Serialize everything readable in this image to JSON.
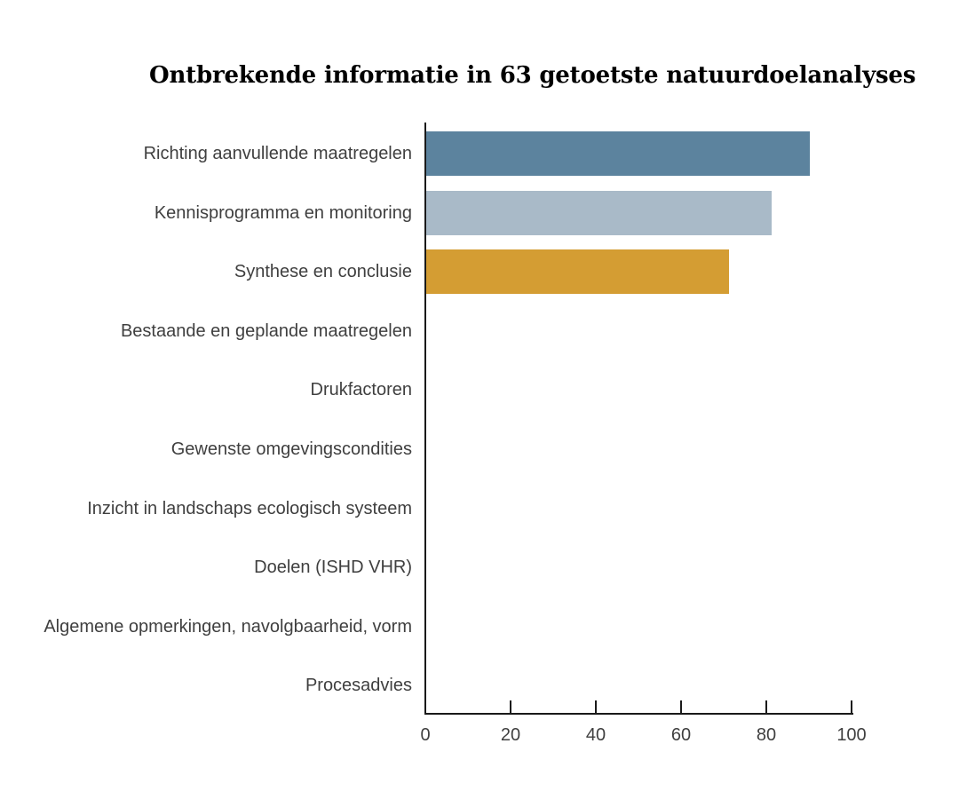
{
  "figure": {
    "background_color": "#ffffff",
    "title_color": "#000000",
    "axis_color": "#1a1a1a",
    "label_color": "#3f3f3f"
  },
  "chart_data": {
    "type": "bar",
    "orientation": "horizontal",
    "title": "Ontbrekende informatie in 63 getoetste natuurdoelanalyses",
    "categories": [
      "Richting aanvullende maatregelen",
      "Kennisprogramma en monitoring",
      "Synthese en conclusie",
      "Bestaande en geplande maatregelen",
      "Drukfactoren",
      "Gewenste omgevingscondities",
      "Inzicht in landschaps ecologisch systeem",
      "Doelen (ISHD VHR)",
      "Algemene opmerkingen, navolgbaarheid, vorm",
      "Procesadvies"
    ],
    "values": [
      90,
      81,
      71,
      0,
      0,
      0,
      0,
      0,
      0,
      0
    ],
    "bar_colors": [
      "#5c839e",
      "#a9bac8",
      "#d49d33",
      null,
      null,
      null,
      null,
      null,
      null,
      null
    ],
    "xlabel": "",
    "ylabel": "",
    "xlim": [
      0,
      100
    ],
    "x_ticks": [
      0,
      20,
      40,
      60,
      80,
      100
    ],
    "grid": false,
    "legend": false
  }
}
